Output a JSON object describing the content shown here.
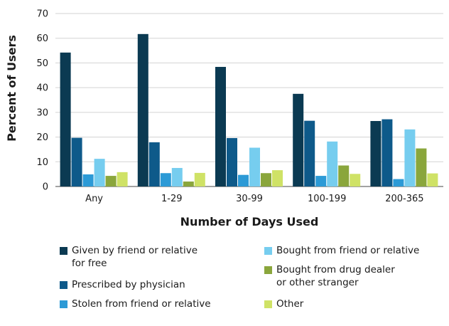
{
  "chart_data": {
    "type": "bar",
    "title": "",
    "xlabel": "Number of Days Used",
    "ylabel": "Percent of Users",
    "ylim": [
      0,
      70
    ],
    "yticks": [
      0,
      10,
      20,
      30,
      40,
      50,
      60,
      70
    ],
    "grid": true,
    "legend_position": "bottom",
    "categories": [
      "Any",
      "1-29",
      "30-99",
      "100-199",
      "200-365"
    ],
    "series": [
      {
        "name": "Given by friend or relative for free",
        "color": "#0b3a52",
        "values": [
          54.2,
          61.7,
          48.4,
          37.5,
          26.5
        ]
      },
      {
        "name": "Prescribed by physician",
        "color": "#0e5a8a",
        "values": [
          19.7,
          17.9,
          19.6,
          26.6,
          27.2
        ]
      },
      {
        "name": "Stolen from friend or relative",
        "color": "#2c9ad6",
        "values": [
          4.9,
          5.4,
          4.7,
          4.3,
          3.0
        ]
      },
      {
        "name": "Bought from friend or relative",
        "color": "#76cdef",
        "values": [
          11.2,
          7.5,
          15.7,
          18.2,
          23.1
        ]
      },
      {
        "name": "Bought from drug dealer or other stranger",
        "color": "#8aa63c",
        "values": [
          4.3,
          2.0,
          5.4,
          8.5,
          15.4
        ]
      },
      {
        "name": "Other",
        "color": "#cfe266",
        "values": [
          5.8,
          5.5,
          6.6,
          5.1,
          5.3
        ]
      }
    ]
  },
  "legend": [
    {
      "lines": [
        "Given by friend or relative",
        "for free"
      ],
      "color": "#0b3a52"
    },
    {
      "lines": [
        "Prescribed by physician"
      ],
      "color": "#0e5a8a"
    },
    {
      "lines": [
        "Stolen from friend or relative"
      ],
      "color": "#2c9ad6"
    },
    {
      "lines": [
        "Bought from friend or relative"
      ],
      "color": "#76cdef"
    },
    {
      "lines": [
        "Bought from drug dealer",
        "or other stranger"
      ],
      "color": "#8aa63c"
    },
    {
      "lines": [
        "Other"
      ],
      "color": "#cfe266"
    }
  ]
}
